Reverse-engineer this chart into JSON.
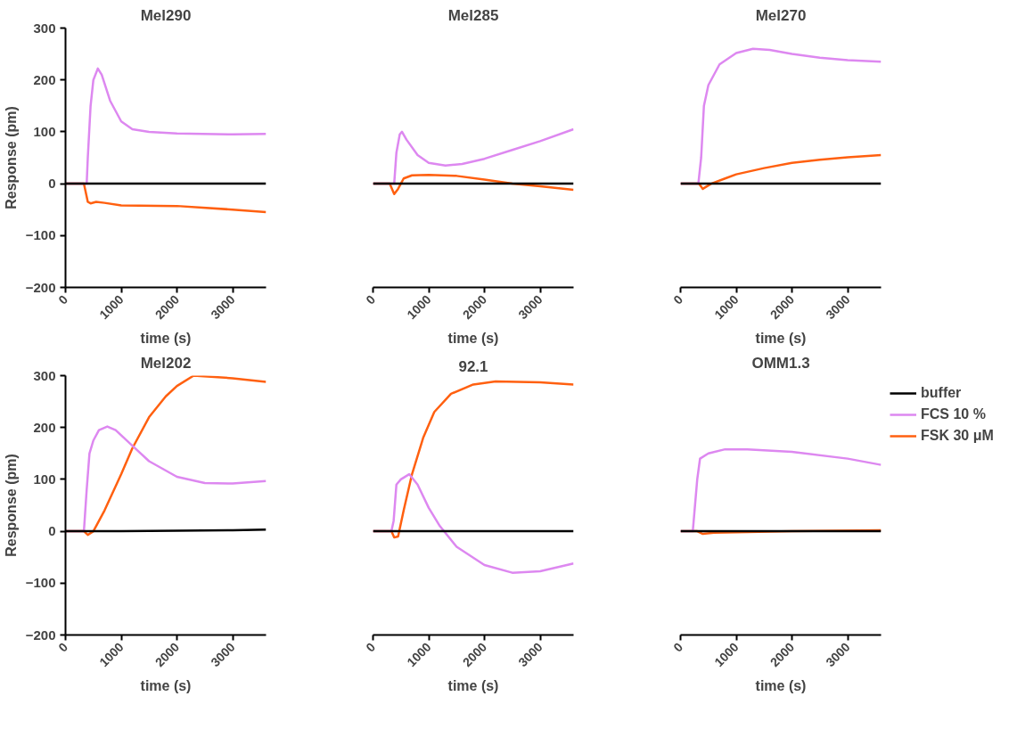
{
  "chart_data": [
    {
      "type": "line",
      "title": "Mel290",
      "xlabel": "time (s)",
      "ylabel": "Response (pm)",
      "xlim": [
        0,
        3600
      ],
      "xticks": [
        0,
        1000,
        2000,
        3000
      ],
      "ylim": [
        -200,
        300
      ],
      "yticks": [
        -200,
        -100,
        0,
        100,
        200,
        300
      ],
      "grid": false,
      "legend": false,
      "series": [
        {
          "color": "#000000",
          "x": [
            0,
            1000,
            2000,
            3000,
            3600
          ],
          "values": [
            0,
            0,
            0,
            0,
            0
          ]
        },
        {
          "color": "#dd88f0",
          "x": [
            0,
            380,
            400,
            450,
            500,
            580,
            650,
            800,
            1000,
            1200,
            1500,
            2000,
            3000,
            3600
          ],
          "values": [
            0,
            0,
            50,
            150,
            200,
            222,
            210,
            160,
            120,
            105,
            100,
            97,
            95,
            96
          ]
        },
        {
          "color": "#ff6010",
          "x": [
            0,
            330,
            400,
            450,
            550,
            700,
            1000,
            2000,
            3000,
            3600
          ],
          "values": [
            0,
            0,
            -35,
            -38,
            -35,
            -37,
            -42,
            -43,
            -50,
            -55
          ]
        }
      ]
    },
    {
      "type": "line",
      "title": "Mel285",
      "xlabel": "time (s)",
      "xlim": [
        0,
        3600
      ],
      "xticks": [
        0,
        1000,
        2000,
        3000
      ],
      "ylim": [
        -200,
        300
      ],
      "tick_labels": "x",
      "grid": false,
      "legend": false,
      "series": [
        {
          "color": "#000000",
          "x": [
            0,
            1000,
            2000,
            3000,
            3600
          ],
          "values": [
            0,
            0,
            0,
            0,
            0
          ]
        },
        {
          "color": "#dd88f0",
          "x": [
            0,
            380,
            420,
            480,
            520,
            600,
            800,
            1000,
            1300,
            1600,
            2000,
            2500,
            3000,
            3600
          ],
          "values": [
            0,
            0,
            60,
            95,
            100,
            85,
            55,
            40,
            35,
            38,
            48,
            65,
            82,
            105
          ]
        },
        {
          "color": "#ff6010",
          "x": [
            0,
            300,
            380,
            450,
            550,
            700,
            1000,
            1500,
            2000,
            2500,
            3000,
            3600
          ],
          "values": [
            0,
            0,
            -20,
            -10,
            10,
            16,
            17,
            15,
            8,
            0,
            -5,
            -12
          ]
        }
      ]
    },
    {
      "type": "line",
      "title": "Mel270",
      "xlabel": "time (s)",
      "xlim": [
        0,
        3600
      ],
      "xticks": [
        0,
        1000,
        2000,
        3000
      ],
      "ylim": [
        -200,
        300
      ],
      "tick_labels": "x",
      "grid": false,
      "legend": false,
      "series": [
        {
          "color": "#000000",
          "x": [
            0,
            1000,
            2000,
            3000,
            3600
          ],
          "values": [
            0,
            0,
            0,
            0,
            0
          ]
        },
        {
          "color": "#dd88f0",
          "x": [
            0,
            320,
            370,
            420,
            500,
            700,
            1000,
            1300,
            1600,
            2000,
            2500,
            3000,
            3600
          ],
          "values": [
            0,
            0,
            50,
            150,
            190,
            230,
            252,
            260,
            258,
            250,
            243,
            238,
            235
          ]
        },
        {
          "color": "#ff6010",
          "x": [
            0,
            330,
            400,
            550,
            800,
            1000,
            1500,
            2000,
            2500,
            3000,
            3600
          ],
          "values": [
            0,
            0,
            -10,
            0,
            10,
            18,
            30,
            40,
            46,
            51,
            55
          ]
        }
      ]
    },
    {
      "type": "line",
      "title": "Mel202",
      "xlabel": "time (s)",
      "ylabel": "Response (pm)",
      "xlim": [
        0,
        3600
      ],
      "xticks": [
        0,
        1000,
        2000,
        3000
      ],
      "ylim": [
        -200,
        300
      ],
      "yticks": [
        -200,
        -100,
        0,
        100,
        200,
        300
      ],
      "grid": false,
      "legend": false,
      "series": [
        {
          "color": "#000000",
          "x": [
            0,
            1000,
            2000,
            3000,
            3600
          ],
          "values": [
            0,
            0,
            1,
            2,
            3
          ]
        },
        {
          "color": "#dd88f0",
          "x": [
            0,
            330,
            380,
            430,
            500,
            600,
            750,
            900,
            1200,
            1500,
            2000,
            2500,
            3000,
            3600
          ],
          "values": [
            0,
            0,
            80,
            150,
            175,
            195,
            202,
            195,
            165,
            135,
            105,
            93,
            92,
            97
          ]
        },
        {
          "color": "#ff6010",
          "x": [
            0,
            330,
            400,
            500,
            700,
            1000,
            1200,
            1500,
            1800,
            2000,
            2300,
            3000,
            3600
          ],
          "values": [
            0,
            0,
            -7,
            0,
            40,
            110,
            160,
            220,
            260,
            280,
            300,
            295,
            288
          ]
        }
      ]
    },
    {
      "type": "line",
      "title": "92.1",
      "xlabel": "time (s)",
      "xlim": [
        0,
        3600
      ],
      "xticks": [
        0,
        1000,
        2000,
        3000
      ],
      "ylim": [
        -200,
        300
      ],
      "tick_labels": "x",
      "grid": false,
      "legend": false,
      "series": [
        {
          "color": "#000000",
          "x": [
            0,
            1000,
            2000,
            3000,
            3600
          ],
          "values": [
            0,
            0,
            0,
            0,
            0
          ]
        },
        {
          "color": "#dd88f0",
          "x": [
            0,
            330,
            370,
            420,
            500,
            650,
            800,
            1000,
            1200,
            1500,
            2000,
            2500,
            3000,
            3600
          ],
          "values": [
            0,
            0,
            20,
            90,
            100,
            110,
            90,
            45,
            10,
            -30,
            -65,
            -80,
            -77,
            -62
          ]
        },
        {
          "color": "#ff6010",
          "x": [
            0,
            330,
            380,
            450,
            550,
            700,
            900,
            1100,
            1400,
            1800,
            2200,
            3000,
            3600
          ],
          "values": [
            0,
            0,
            -12,
            -10,
            40,
            110,
            180,
            230,
            265,
            283,
            289,
            287,
            283
          ]
        }
      ]
    },
    {
      "type": "line",
      "title": "OMM1.3",
      "xlabel": "time (s)",
      "xlim": [
        0,
        3600
      ],
      "xticks": [
        0,
        1000,
        2000,
        3000
      ],
      "ylim": [
        -200,
        300
      ],
      "tick_labels": "x",
      "grid": false,
      "legend": "top right",
      "series": [
        {
          "name": "buffer",
          "color": "#000000",
          "x": [
            0,
            1000,
            2000,
            3000,
            3600
          ],
          "values": [
            0,
            0,
            0,
            0,
            0
          ]
        },
        {
          "name": "FCS 10 %",
          "color": "#dd88f0",
          "x": [
            0,
            220,
            300,
            350,
            500,
            800,
            1200,
            2000,
            3000,
            3600
          ],
          "values": [
            0,
            0,
            100,
            140,
            150,
            158,
            158,
            153,
            140,
            128
          ]
        },
        {
          "name": "FSK 30 μM",
          "color": "#ff6010",
          "x": [
            0,
            300,
            400,
            600,
            1000,
            2000,
            3600
          ],
          "values": [
            0,
            0,
            -5,
            -3,
            -2,
            0,
            2
          ]
        }
      ]
    }
  ]
}
